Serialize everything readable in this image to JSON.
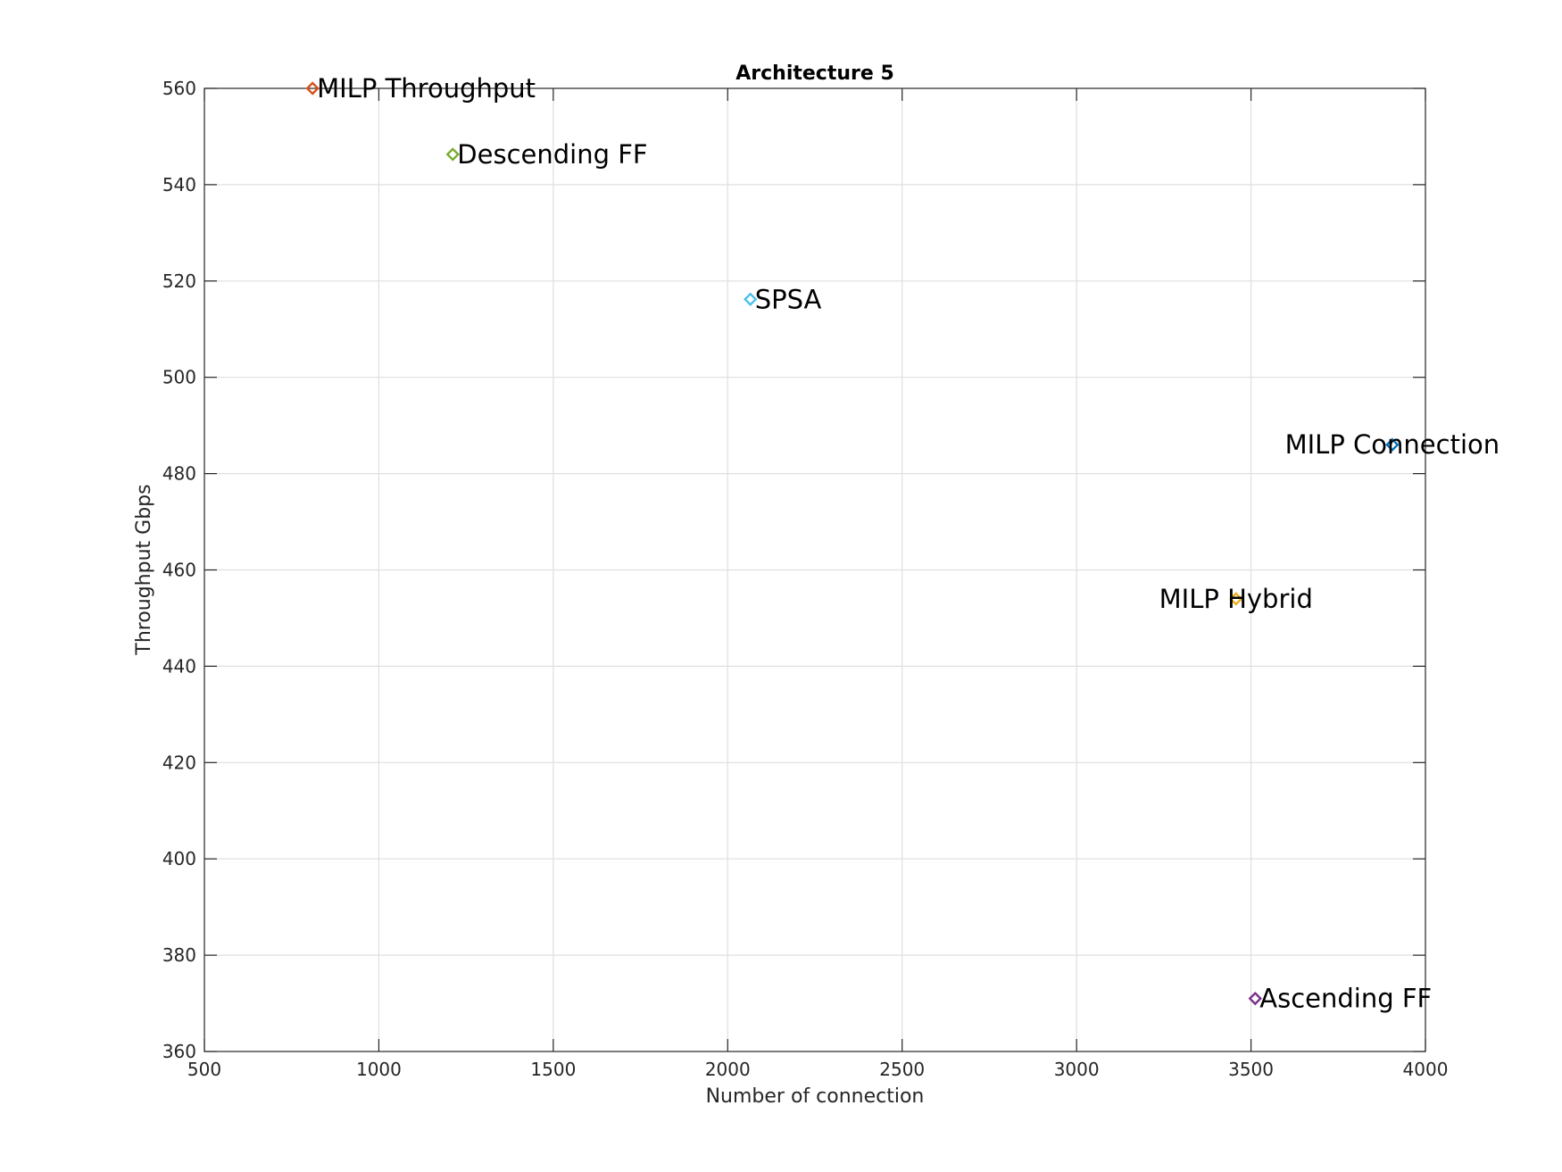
{
  "chart_data": {
    "type": "scatter",
    "title": "Architecture 5",
    "xlabel": "Number of connection",
    "ylabel": "Throughput Gbps",
    "xlim": [
      500,
      4000
    ],
    "ylim": [
      360,
      560
    ],
    "xticks": [
      500,
      1000,
      1500,
      2000,
      2500,
      3000,
      3500,
      4000
    ],
    "yticks": [
      360,
      380,
      400,
      420,
      440,
      460,
      480,
      500,
      520,
      540,
      560
    ],
    "grid": true,
    "marker": "diamond",
    "points": [
      {
        "label": "MILP Throughput",
        "x": 810,
        "y": 560,
        "color": "#d95319",
        "label_side": "right"
      },
      {
        "label": "Descending FF",
        "x": 1212,
        "y": 546.3,
        "color": "#77ac30",
        "label_side": "right"
      },
      {
        "label": "SPSA",
        "x": 2065,
        "y": 516.2,
        "color": "#4dbeee",
        "label_side": "right"
      },
      {
        "label": "MILP Connection",
        "x": 3905,
        "y": 486,
        "color": "#0072bd",
        "label_side": "center"
      },
      {
        "label": "MILP Hybrid",
        "x": 3457,
        "y": 454,
        "color": "#edb120",
        "label_side": "center"
      },
      {
        "label": "Ascending FF",
        "x": 3512,
        "y": 371,
        "color": "#7e2f8e",
        "label_side": "right"
      }
    ]
  }
}
